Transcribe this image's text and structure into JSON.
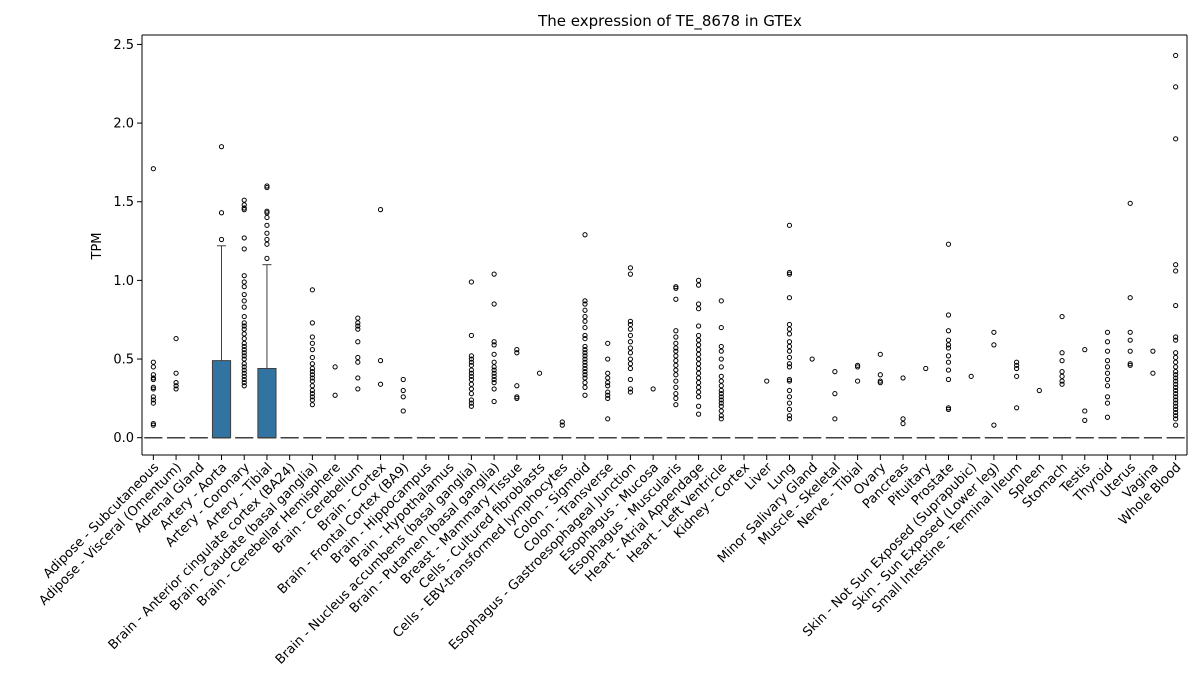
{
  "chart_data": {
    "type": "box",
    "title": "The expression of TE_8678 in GTEx",
    "xlabel": "",
    "ylabel": "TPM",
    "ylim": [
      -0.11,
      2.56
    ],
    "yticks": [
      0.0,
      0.5,
      1.0,
      1.5,
      2.0,
      2.5
    ],
    "ytick_labels": [
      "0.0",
      "0.5",
      "1.0",
      "1.5",
      "2.0",
      "2.5"
    ],
    "grid": false,
    "legend": "none",
    "box_color": "#3274a1",
    "categories": [
      "Adipose - Subcutaneous",
      "Adipose - Visceral (Omentum)",
      "Adrenal Gland",
      "Artery - Aorta",
      "Artery - Coronary",
      "Artery - Tibial",
      "Brain - Anterior cingulate cortex (BA24)",
      "Brain - Caudate (basal ganglia)",
      "Brain - Cerebellar Hemisphere",
      "Brain - Cerebellum",
      "Brain - Cortex",
      "Brain - Frontal Cortex (BA9)",
      "Brain - Hippocampus",
      "Brain - Hypothalamus",
      "Brain - Nucleus accumbens (basal ganglia)",
      "Brain - Putamen (basal ganglia)",
      "Breast - Mammary Tissue",
      "Cells - Cultured fibroblasts",
      "Cells - EBV-transformed lymphocytes",
      "Colon - Sigmoid",
      "Colon - Transverse",
      "Esophagus - Gastroesophageal Junction",
      "Esophagus - Mucosa",
      "Esophagus - Muscularis",
      "Heart - Atrial Appendage",
      "Heart - Left Ventricle",
      "Kidney - Cortex",
      "Liver",
      "Lung",
      "Minor Salivary Gland",
      "Muscle - Skeletal",
      "Nerve - Tibial",
      "Ovary",
      "Pancreas",
      "Pituitary",
      "Prostate",
      "Skin - Not Sun Exposed (Suprapubic)",
      "Skin - Sun Exposed (Lower leg)",
      "Small Intestine - Terminal Ileum",
      "Spleen",
      "Stomach",
      "Testis",
      "Thyroid",
      "Uterus",
      "Vagina",
      "Whole Blood"
    ],
    "boxes": [
      {
        "q1": 0,
        "median": 0,
        "q3": 0,
        "whislo": 0,
        "whishi": 0,
        "fliers": [
          1.71,
          0.48,
          0.45,
          0.4,
          0.38,
          0.37,
          0.32,
          0.31,
          0.26,
          0.24,
          0.22,
          0.09,
          0.08
        ]
      },
      {
        "q1": 0,
        "median": 0,
        "q3": 0,
        "whislo": 0,
        "whishi": 0,
        "fliers": [
          0.63,
          0.41,
          0.35,
          0.33,
          0.31
        ]
      },
      {
        "q1": 0,
        "median": 0,
        "q3": 0,
        "whislo": 0,
        "whishi": 0,
        "fliers": []
      },
      {
        "q1": 0,
        "median": 0,
        "q3": 0.49,
        "whislo": 0,
        "whishi": 1.22,
        "fliers": [
          1.85,
          1.43,
          1.26
        ]
      },
      {
        "q1": 0,
        "median": 0,
        "q3": 0,
        "whislo": 0,
        "whishi": 0,
        "fliers": [
          1.51,
          1.48,
          1.46,
          1.45,
          1.27,
          1.2,
          1.03,
          0.99,
          0.96,
          0.91,
          0.87,
          0.83,
          0.77,
          0.73,
          0.71,
          0.69,
          0.66,
          0.63,
          0.6,
          0.58,
          0.56,
          0.54,
          0.52,
          0.5,
          0.47,
          0.45,
          0.43,
          0.41,
          0.39,
          0.37,
          0.35,
          0.33
        ]
      },
      {
        "q1": 0,
        "median": 0,
        "q3": 0.44,
        "whislo": 0,
        "whishi": 1.1,
        "fliers": [
          1.6,
          1.59,
          1.44,
          1.43,
          1.4,
          1.35,
          1.3,
          1.26,
          1.23,
          1.14
        ]
      },
      {
        "q1": 0,
        "median": 0,
        "q3": 0,
        "whislo": 0,
        "whishi": 0,
        "fliers": []
      },
      {
        "q1": 0,
        "median": 0,
        "q3": 0,
        "whislo": 0,
        "whishi": 0,
        "fliers": [
          0.94,
          0.73,
          0.64,
          0.6,
          0.56,
          0.51,
          0.47,
          0.44,
          0.42,
          0.4,
          0.38,
          0.36,
          0.33,
          0.3,
          0.28,
          0.26,
          0.24,
          0.21
        ]
      },
      {
        "q1": 0,
        "median": 0,
        "q3": 0,
        "whislo": 0,
        "whishi": 0,
        "fliers": [
          0.45,
          0.27
        ]
      },
      {
        "q1": 0,
        "median": 0,
        "q3": 0,
        "whislo": 0,
        "whishi": 0,
        "fliers": [
          0.76,
          0.73,
          0.71,
          0.69,
          0.61,
          0.51,
          0.48,
          0.38,
          0.31
        ]
      },
      {
        "q1": 0,
        "median": 0,
        "q3": 0,
        "whislo": 0,
        "whishi": 0,
        "fliers": [
          1.45,
          0.49,
          0.34
        ]
      },
      {
        "q1": 0,
        "median": 0,
        "q3": 0,
        "whislo": 0,
        "whishi": 0,
        "fliers": [
          0.37,
          0.3,
          0.26,
          0.17
        ]
      },
      {
        "q1": 0,
        "median": 0,
        "q3": 0,
        "whislo": 0,
        "whishi": 0,
        "fliers": []
      },
      {
        "q1": 0,
        "median": 0,
        "q3": 0,
        "whislo": 0,
        "whishi": 0,
        "fliers": []
      },
      {
        "q1": 0,
        "median": 0,
        "q3": 0,
        "whislo": 0,
        "whishi": 0,
        "fliers": [
          0.99,
          0.65,
          0.52,
          0.5,
          0.48,
          0.46,
          0.43,
          0.41,
          0.39,
          0.37,
          0.34,
          0.31,
          0.28,
          0.24,
          0.22,
          0.2
        ]
      },
      {
        "q1": 0,
        "median": 0,
        "q3": 0,
        "whislo": 0,
        "whishi": 0,
        "fliers": [
          1.04,
          0.85,
          0.61,
          0.59,
          0.53,
          0.48,
          0.45,
          0.43,
          0.41,
          0.39,
          0.37,
          0.35,
          0.31,
          0.23
        ]
      },
      {
        "q1": 0,
        "median": 0,
        "q3": 0,
        "whislo": 0,
        "whishi": 0,
        "fliers": [
          0.56,
          0.54,
          0.33,
          0.26,
          0.25
        ]
      },
      {
        "q1": 0,
        "median": 0,
        "q3": 0,
        "whislo": 0,
        "whishi": 0,
        "fliers": [
          0.41
        ]
      },
      {
        "q1": 0,
        "median": 0,
        "q3": 0,
        "whislo": 0,
        "whishi": 0,
        "fliers": [
          0.1,
          0.08
        ]
      },
      {
        "q1": 0,
        "median": 0,
        "q3": 0,
        "whislo": 0,
        "whishi": 0,
        "fliers": [
          1.29,
          0.87,
          0.85,
          0.81,
          0.77,
          0.74,
          0.7,
          0.65,
          0.63,
          0.58,
          0.56,
          0.54,
          0.52,
          0.5,
          0.48,
          0.46,
          0.44,
          0.42,
          0.4,
          0.38,
          0.35,
          0.32,
          0.27
        ]
      },
      {
        "q1": 0,
        "median": 0,
        "q3": 0,
        "whislo": 0,
        "whishi": 0,
        "fliers": [
          0.6,
          0.5,
          0.41,
          0.38,
          0.35,
          0.33,
          0.29,
          0.27,
          0.25,
          0.12
        ]
      },
      {
        "q1": 0,
        "median": 0,
        "q3": 0,
        "whislo": 0,
        "whishi": 0,
        "fliers": [
          1.08,
          1.04,
          0.74,
          0.72,
          0.69,
          0.65,
          0.61,
          0.57,
          0.54,
          0.5,
          0.47,
          0.44,
          0.37,
          0.31,
          0.29
        ]
      },
      {
        "q1": 0,
        "median": 0,
        "q3": 0,
        "whislo": 0,
        "whishi": 0,
        "fliers": [
          0.31
        ]
      },
      {
        "q1": 0,
        "median": 0,
        "q3": 0,
        "whislo": 0,
        "whishi": 0,
        "fliers": [
          0.96,
          0.95,
          0.88,
          0.68,
          0.64,
          0.6,
          0.57,
          0.55,
          0.52,
          0.49,
          0.46,
          0.43,
          0.4,
          0.36,
          0.32,
          0.28,
          0.25,
          0.21
        ]
      },
      {
        "q1": 0,
        "median": 0,
        "q3": 0,
        "whislo": 0,
        "whishi": 0,
        "fliers": [
          1.0,
          0.97,
          0.85,
          0.82,
          0.71,
          0.65,
          0.62,
          0.59,
          0.56,
          0.53,
          0.5,
          0.47,
          0.44,
          0.41,
          0.38,
          0.35,
          0.32,
          0.29,
          0.26,
          0.2,
          0.15
        ]
      },
      {
        "q1": 0,
        "median": 0,
        "q3": 0,
        "whislo": 0,
        "whishi": 0,
        "fliers": [
          0.87,
          0.7,
          0.58,
          0.55,
          0.5,
          0.45,
          0.39,
          0.36,
          0.33,
          0.3,
          0.28,
          0.26,
          0.24,
          0.22,
          0.2,
          0.17,
          0.14,
          0.12
        ]
      },
      {
        "q1": 0,
        "median": 0,
        "q3": 0,
        "whislo": 0,
        "whishi": 0,
        "fliers": []
      },
      {
        "q1": 0,
        "median": 0,
        "q3": 0,
        "whislo": 0,
        "whishi": 0,
        "fliers": [
          0.36
        ]
      },
      {
        "q1": 0,
        "median": 0,
        "q3": 0,
        "whislo": 0,
        "whishi": 0,
        "fliers": [
          1.35,
          1.05,
          1.04,
          0.89,
          0.72,
          0.69,
          0.66,
          0.61,
          0.58,
          0.55,
          0.51,
          0.47,
          0.45,
          0.37,
          0.36,
          0.3,
          0.26,
          0.22,
          0.18,
          0.14,
          0.12
        ]
      },
      {
        "q1": 0,
        "median": 0,
        "q3": 0,
        "whislo": 0,
        "whishi": 0,
        "fliers": [
          0.5
        ]
      },
      {
        "q1": 0,
        "median": 0,
        "q3": 0,
        "whislo": 0,
        "whishi": 0,
        "fliers": [
          0.42,
          0.28,
          0.12
        ]
      },
      {
        "q1": 0,
        "median": 0,
        "q3": 0,
        "whislo": 0,
        "whishi": 0,
        "fliers": [
          0.46,
          0.45,
          0.36
        ]
      },
      {
        "q1": 0,
        "median": 0,
        "q3": 0,
        "whislo": 0,
        "whishi": 0,
        "fliers": [
          0.53,
          0.4,
          0.36,
          0.35
        ]
      },
      {
        "q1": 0,
        "median": 0,
        "q3": 0,
        "whislo": 0,
        "whishi": 0,
        "fliers": [
          0.38,
          0.12,
          0.09
        ]
      },
      {
        "q1": 0,
        "median": 0,
        "q3": 0,
        "whislo": 0,
        "whishi": 0,
        "fliers": [
          0.44
        ]
      },
      {
        "q1": 0,
        "median": 0,
        "q3": 0,
        "whislo": 0,
        "whishi": 0,
        "fliers": [
          1.23,
          0.78,
          0.68,
          0.62,
          0.59,
          0.57,
          0.52,
          0.48,
          0.43,
          0.37,
          0.19,
          0.18
        ]
      },
      {
        "q1": 0,
        "median": 0,
        "q3": 0,
        "whislo": 0,
        "whishi": 0,
        "fliers": [
          0.39
        ]
      },
      {
        "q1": 0,
        "median": 0,
        "q3": 0,
        "whislo": 0,
        "whishi": 0,
        "fliers": [
          0.67,
          0.59,
          0.08
        ]
      },
      {
        "q1": 0,
        "median": 0,
        "q3": 0,
        "whislo": 0,
        "whishi": 0,
        "fliers": [
          0.48,
          0.46,
          0.44,
          0.39,
          0.19
        ]
      },
      {
        "q1": 0,
        "median": 0,
        "q3": 0,
        "whislo": 0,
        "whishi": 0,
        "fliers": [
          0.3
        ]
      },
      {
        "q1": 0,
        "median": 0,
        "q3": 0,
        "whislo": 0,
        "whishi": 0,
        "fliers": [
          0.77,
          0.54,
          0.49,
          0.42,
          0.39,
          0.36,
          0.34
        ]
      },
      {
        "q1": 0,
        "median": 0,
        "q3": 0,
        "whislo": 0,
        "whishi": 0,
        "fliers": [
          0.56,
          0.17,
          0.11
        ]
      },
      {
        "q1": 0,
        "median": 0,
        "q3": 0,
        "whislo": 0,
        "whishi": 0,
        "fliers": [
          0.67,
          0.61,
          0.55,
          0.49,
          0.45,
          0.41,
          0.37,
          0.33,
          0.26,
          0.22,
          0.13
        ]
      },
      {
        "q1": 0,
        "median": 0,
        "q3": 0,
        "whislo": 0,
        "whishi": 0,
        "fliers": [
          1.49,
          0.89,
          0.67,
          0.62,
          0.55,
          0.47,
          0.46
        ]
      },
      {
        "q1": 0,
        "median": 0,
        "q3": 0,
        "whislo": 0,
        "whishi": 0,
        "fliers": [
          0.55,
          0.41
        ]
      },
      {
        "q1": 0,
        "median": 0,
        "q3": 0,
        "whislo": 0,
        "whishi": 0,
        "fliers": [
          2.43,
          2.23,
          1.9,
          1.1,
          1.06,
          0.84,
          0.64,
          0.62,
          0.54,
          0.51,
          0.48,
          0.45,
          0.42,
          0.4,
          0.38,
          0.36,
          0.34,
          0.32,
          0.3,
          0.28,
          0.26,
          0.24,
          0.22,
          0.2,
          0.18,
          0.16,
          0.14,
          0.12,
          0.08
        ]
      }
    ]
  }
}
